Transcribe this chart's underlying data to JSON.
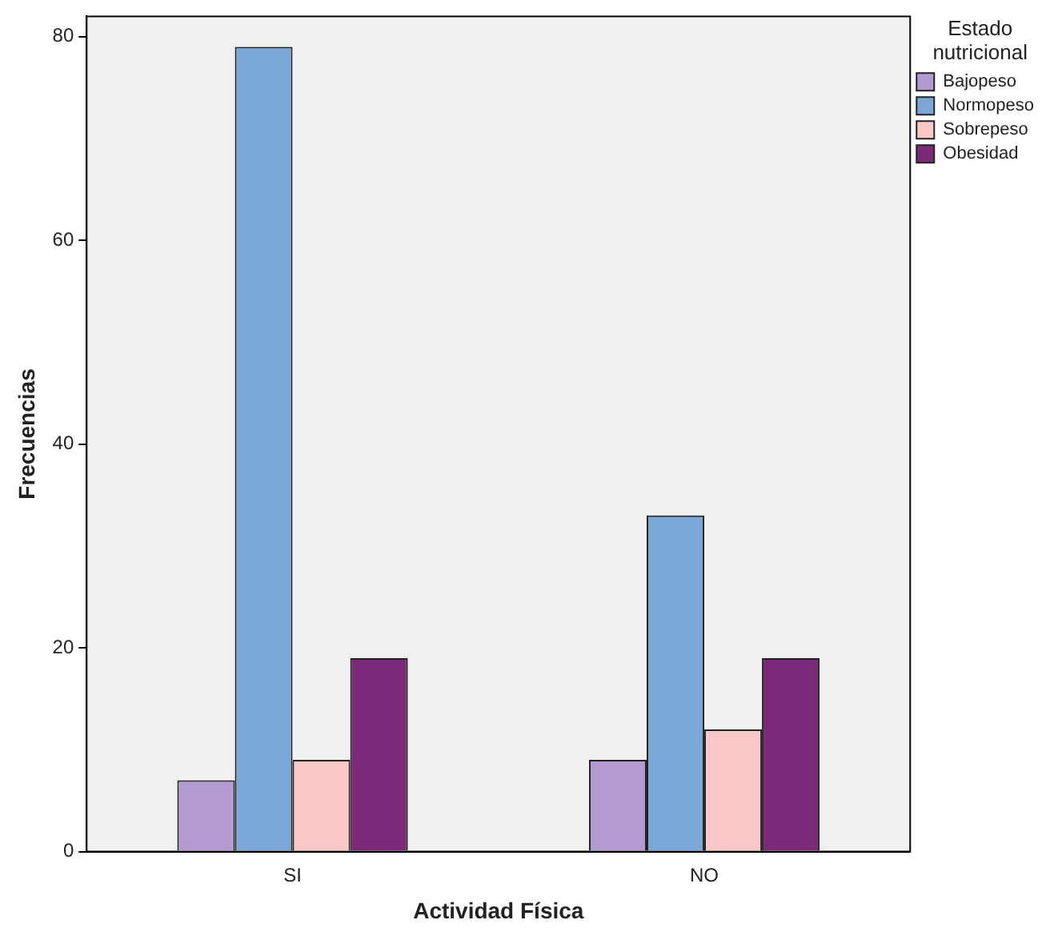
{
  "chart_data": {
    "type": "bar",
    "xlabel": "Actividad Física",
    "ylabel": "Frecuencias",
    "legend_title": "Estado nutricional",
    "legend": "top right",
    "grid": false,
    "categories": [
      "SI",
      "NO"
    ],
    "series": [
      {
        "name": "Bajopeso",
        "color": "#b39ad0",
        "values": [
          7,
          9
        ]
      },
      {
        "name": "Normopeso",
        "color": "#7ba7d7",
        "values": [
          79,
          33
        ]
      },
      {
        "name": "Sobrepeso",
        "color": "#fbc8c8",
        "values": [
          9,
          12
        ]
      },
      {
        "name": "Obesidad",
        "color": "#7b2a7a",
        "values": [
          19,
          19
        ]
      }
    ],
    "ylim": [
      0,
      82
    ],
    "yticks": [
      0,
      20,
      40,
      60,
      80
    ]
  }
}
